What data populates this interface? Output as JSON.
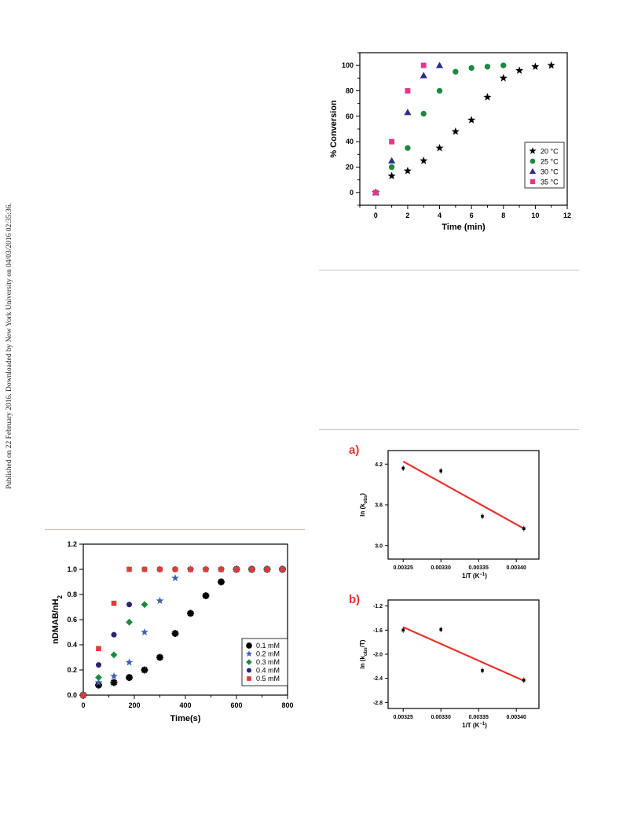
{
  "side_note": "Published on 22 February 2016. Downloaded by New York University on 04/03/2016 02:35:36.",
  "chart_data": [
    {
      "id": "conversion",
      "type": "scatter",
      "xlabel": "Time (min)",
      "ylabel": "% Conversion",
      "xlim": [
        -1,
        12
      ],
      "ylim": [
        -10,
        110
      ],
      "xticks": [
        0,
        2,
        4,
        6,
        8,
        10,
        12
      ],
      "yticks": [
        0,
        20,
        40,
        60,
        80,
        100
      ],
      "legend_position": "bottom-right",
      "grid": false,
      "series": [
        {
          "name": "20 °C",
          "marker": "star",
          "color": "#000000",
          "x": [
            0,
            1,
            2,
            3,
            4,
            5,
            6,
            7,
            8,
            9,
            10,
            11
          ],
          "y": [
            0,
            13,
            17,
            25,
            35,
            48,
            57,
            75,
            90,
            96,
            99,
            100
          ]
        },
        {
          "name": "25 °C",
          "marker": "circle",
          "color": "#1b8a3e",
          "x": [
            0,
            1,
            2,
            3,
            4,
            5,
            6,
            7,
            8
          ],
          "y": [
            0,
            20,
            35,
            62,
            80,
            95,
            98,
            99,
            100
          ]
        },
        {
          "name": "30 °C",
          "marker": "triangle",
          "color": "#2c2c8c",
          "x": [
            0,
            1,
            2,
            3,
            4
          ],
          "y": [
            0,
            25,
            63,
            92,
            100
          ]
        },
        {
          "name": "35 °C",
          "marker": "square",
          "color": "#e0388c",
          "x": [
            0,
            1,
            2,
            3
          ],
          "y": [
            0,
            40,
            80,
            100
          ]
        }
      ]
    },
    {
      "id": "ratio",
      "type": "scatter",
      "xlabel": "Time(s)",
      "ylabel": "nDMAB/nH",
      "ylabel_sub": "2",
      "xlim": [
        0,
        800
      ],
      "ylim": [
        0,
        1.2
      ],
      "xticks": [
        0,
        200,
        400,
        600,
        800
      ],
      "yticks": [
        "0.0",
        "0.2",
        "0.4",
        "0.6",
        "0.8",
        "1.0",
        "1.2"
      ],
      "legend_position": "bottom-right",
      "grid": false,
      "series": [
        {
          "name": "0.1 mM",
          "marker": "asterisk",
          "color": "#000000",
          "x": [
            0,
            60,
            120,
            180,
            240,
            300,
            360,
            420,
            480,
            540,
            600,
            660,
            720,
            780
          ],
          "y": [
            0,
            0.08,
            0.1,
            0.14,
            0.2,
            0.3,
            0.49,
            0.65,
            0.79,
            0.9,
            1.0,
            1.0,
            1.0,
            1.0
          ]
        },
        {
          "name": "0.2 mM",
          "marker": "star",
          "color": "#3f5fb5",
          "x": [
            0,
            60,
            120,
            180,
            240,
            300,
            360,
            420,
            480,
            540,
            600,
            660,
            720,
            780
          ],
          "y": [
            0,
            0.1,
            0.15,
            0.26,
            0.5,
            0.75,
            0.93,
            1.0,
            1.0,
            1.0,
            1.0,
            1.0,
            1.0,
            1.0
          ]
        },
        {
          "name": "0.3 mM",
          "marker": "diamond",
          "color": "#1b8a3e",
          "x": [
            0,
            60,
            120,
            180,
            240,
            300,
            360,
            420,
            480,
            540,
            600,
            660,
            720,
            780
          ],
          "y": [
            0,
            0.14,
            0.32,
            0.58,
            0.72,
            1.0,
            1.0,
            1.0,
            1.0,
            1.0,
            1.0,
            1.0,
            1.0,
            1.0
          ]
        },
        {
          "name": "0.4 mM",
          "marker": "circle",
          "color": "#2a2570",
          "x": [
            0,
            60,
            120,
            180,
            240,
            300,
            360,
            420,
            480,
            540,
            600,
            660,
            720,
            780
          ],
          "y": [
            0,
            0.24,
            0.48,
            0.72,
            1.0,
            1.0,
            1.0,
            1.0,
            1.0,
            1.0,
            1.0,
            1.0,
            1.0,
            1.0
          ]
        },
        {
          "name": "0.5 mM",
          "marker": "square",
          "color": "#e03a3a",
          "x": [
            0,
            60,
            120,
            180,
            240,
            300,
            360,
            420,
            480,
            540,
            600,
            660,
            720,
            780
          ],
          "y": [
            0,
            0.37,
            0.73,
            1.0,
            1.0,
            1.0,
            1.0,
            1.0,
            1.0,
            1.0,
            1.0,
            1.0,
            1.0,
            1.0
          ]
        }
      ]
    },
    {
      "id": "arrhenius_a",
      "panel": "a)",
      "type": "scatter",
      "xlabel": "1/T (K",
      "xlabel_sup": "−1",
      "xlabel_end": ")",
      "ylabel": "ln (k",
      "ylabel_sub": "obs",
      "ylabel_end": ")",
      "xlim": [
        0.00323,
        0.00343
      ],
      "ylim": [
        2.8,
        4.4
      ],
      "xticks": [
        "0.00325",
        "0.00330",
        "0.00335",
        "0.00340"
      ],
      "yticks": [
        "3.0",
        "3.6",
        "4.2"
      ],
      "points": {
        "x": [
          0.00325,
          0.0033,
          0.003355,
          0.00341
        ],
        "y": [
          4.14,
          4.1,
          3.43,
          3.25
        ]
      },
      "fit": {
        "x": [
          0.00325,
          0.00341
        ],
        "y": [
          4.24,
          3.25
        ],
        "color": "#e8322c"
      }
    },
    {
      "id": "arrhenius_b",
      "panel": "b)",
      "type": "scatter",
      "xlabel": "1/T (K",
      "xlabel_sup": "−1",
      "xlabel_end": ")",
      "ylabel": "ln (k",
      "ylabel_sub": "obs",
      "ylabel_end": "/T)",
      "xlim": [
        0.00323,
        0.00343
      ],
      "ylim": [
        -2.9,
        -1.1
      ],
      "xticks": [
        "0.00325",
        "0.00330",
        "0.00335",
        "0.00340"
      ],
      "yticks": [
        "-1.2",
        "-1.6",
        "-2.0",
        "-2.4",
        "-2.8"
      ],
      "points": {
        "x": [
          0.00325,
          0.0033,
          0.003355,
          0.00341
        ],
        "y": [
          -1.6,
          -1.59,
          -2.27,
          -2.43
        ]
      },
      "fit": {
        "x": [
          0.00325,
          0.00341
        ],
        "y": [
          -1.55,
          -2.44
        ],
        "color": "#e8322c"
      }
    }
  ]
}
